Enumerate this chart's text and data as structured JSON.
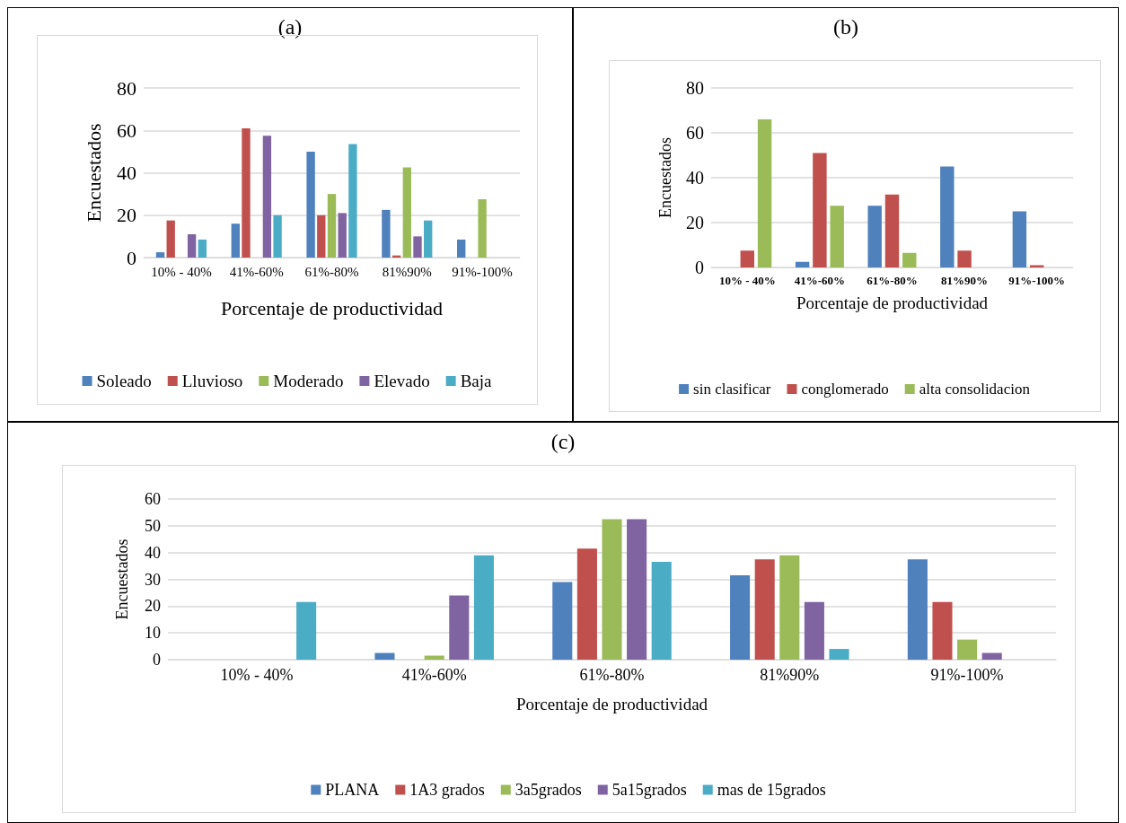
{
  "chart_data": [
    {
      "type": "bar",
      "title": "(a)",
      "xlabel": "Porcentaje de productividad",
      "ylabel": "Encuestados",
      "categories": [
        "10% - 40%",
        "41%-60%",
        "61%-80%",
        "81%90%",
        "91%-100%"
      ],
      "ylim": [
        0,
        80
      ],
      "yticks": [
        0,
        20,
        40,
        60,
        80
      ],
      "grid": "y",
      "legend": "bottom",
      "series": [
        {
          "name": "Soleado",
          "color": "#4f81bd",
          "values": [
            2.5,
            16,
            50,
            22.5,
            8.5
          ]
        },
        {
          "name": "Lluvioso",
          "color": "#c0504d",
          "values": [
            17.5,
            61,
            20,
            1,
            0
          ]
        },
        {
          "name": "Moderado",
          "color": "#9bbb59",
          "values": [
            0,
            0,
            30,
            42.5,
            27.5
          ]
        },
        {
          "name": "Elevado",
          "color": "#8064a2",
          "values": [
            11,
            57.5,
            21,
            10,
            0
          ]
        },
        {
          "name": "Baja",
          "color": "#4bacc6",
          "values": [
            8.5,
            20,
            53.5,
            17.5,
            0
          ]
        }
      ]
    },
    {
      "type": "bar",
      "title": "(b)",
      "xlabel": "Porcentaje de productividad",
      "ylabel": "Encuestados",
      "categories": [
        "10% - 40%",
        "41%-60%",
        "61%-80%",
        "81%90%",
        "91%-100%"
      ],
      "ylim": [
        0,
        80
      ],
      "yticks": [
        0,
        20,
        40,
        60,
        80
      ],
      "grid": "y",
      "legend": "bottom",
      "series": [
        {
          "name": "sin clasificar",
          "color": "#4f81bd",
          "values": [
            0,
            2.5,
            27.5,
            45,
            25
          ]
        },
        {
          "name": "conglomerado",
          "color": "#c0504d",
          "values": [
            7.5,
            51,
            32.5,
            7.5,
            1
          ]
        },
        {
          "name": "alta consolidacion",
          "color": "#9bbb59",
          "values": [
            66,
            27.5,
            6.5,
            0,
            0
          ]
        }
      ]
    },
    {
      "type": "bar",
      "title": "(c)",
      "xlabel": "Porcentaje de productividad",
      "ylabel": "Encuestados",
      "categories": [
        "10% - 40%",
        "41%-60%",
        "61%-80%",
        "81%90%",
        "91%-100%"
      ],
      "ylim": [
        0,
        60
      ],
      "yticks": [
        0,
        10,
        20,
        30,
        40,
        50,
        60
      ],
      "grid": "y",
      "legend": "bottom",
      "series": [
        {
          "name": "PLANA",
          "color": "#4f81bd",
          "values": [
            0,
            2.5,
            29,
            31.5,
            37.5
          ]
        },
        {
          "name": "1A3 grados",
          "color": "#c0504d",
          "values": [
            0,
            0,
            41.5,
            37.5,
            21.5
          ]
        },
        {
          "name": "3a5grados",
          "color": "#9bbb59",
          "values": [
            0,
            1.5,
            52.5,
            39,
            7.5
          ]
        },
        {
          "name": "5a15grados",
          "color": "#8064a2",
          "values": [
            0,
            24,
            52.5,
            21.5,
            2.5
          ]
        },
        {
          "name": "mas de 15grados",
          "color": "#4bacc6",
          "values": [
            21.5,
            39,
            36.5,
            4,
            0
          ]
        }
      ]
    }
  ]
}
